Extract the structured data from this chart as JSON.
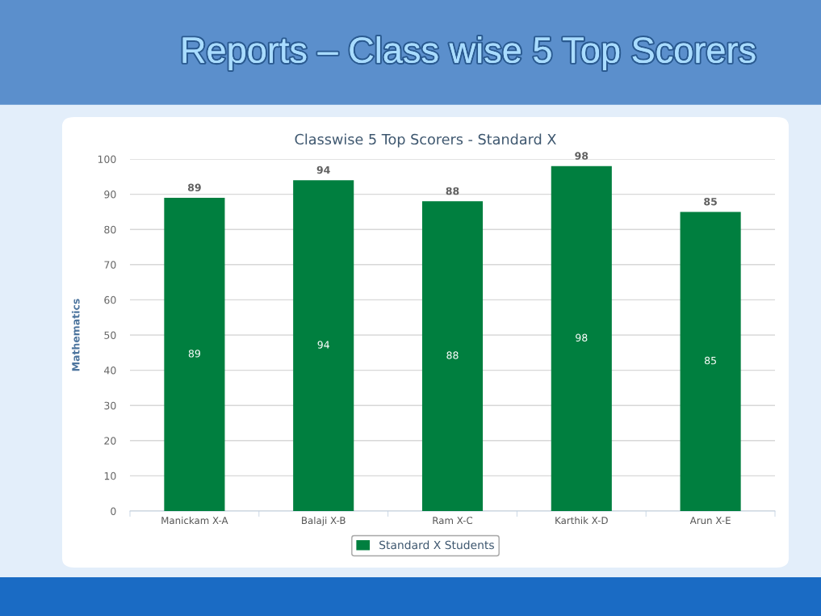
{
  "chart_data": {
    "type": "bar",
    "title": "Reports – Class wise 5 Top Scorers",
    "subtitle": "Classwise 5 Top Scorers - Standard X",
    "ylabel": "Mathematics",
    "categories": [
      "Manickam X-A",
      "Balaji X-B",
      "Ram X-C",
      "Karthik X-D",
      "Arun X-E"
    ],
    "series": [
      {
        "name": "Standard X Students",
        "color": "#007f3f",
        "values": [
          89,
          94,
          88,
          98,
          85
        ]
      }
    ],
    "annotations": [
      "89",
      "94",
      "88",
      "98",
      "85"
    ],
    "ylim": [
      0,
      100
    ],
    "yticks": [
      0,
      10,
      20,
      30,
      40,
      50,
      60,
      70,
      80,
      90,
      100
    ],
    "grid": "y",
    "legend": "bottom",
    "data_labels": true
  }
}
